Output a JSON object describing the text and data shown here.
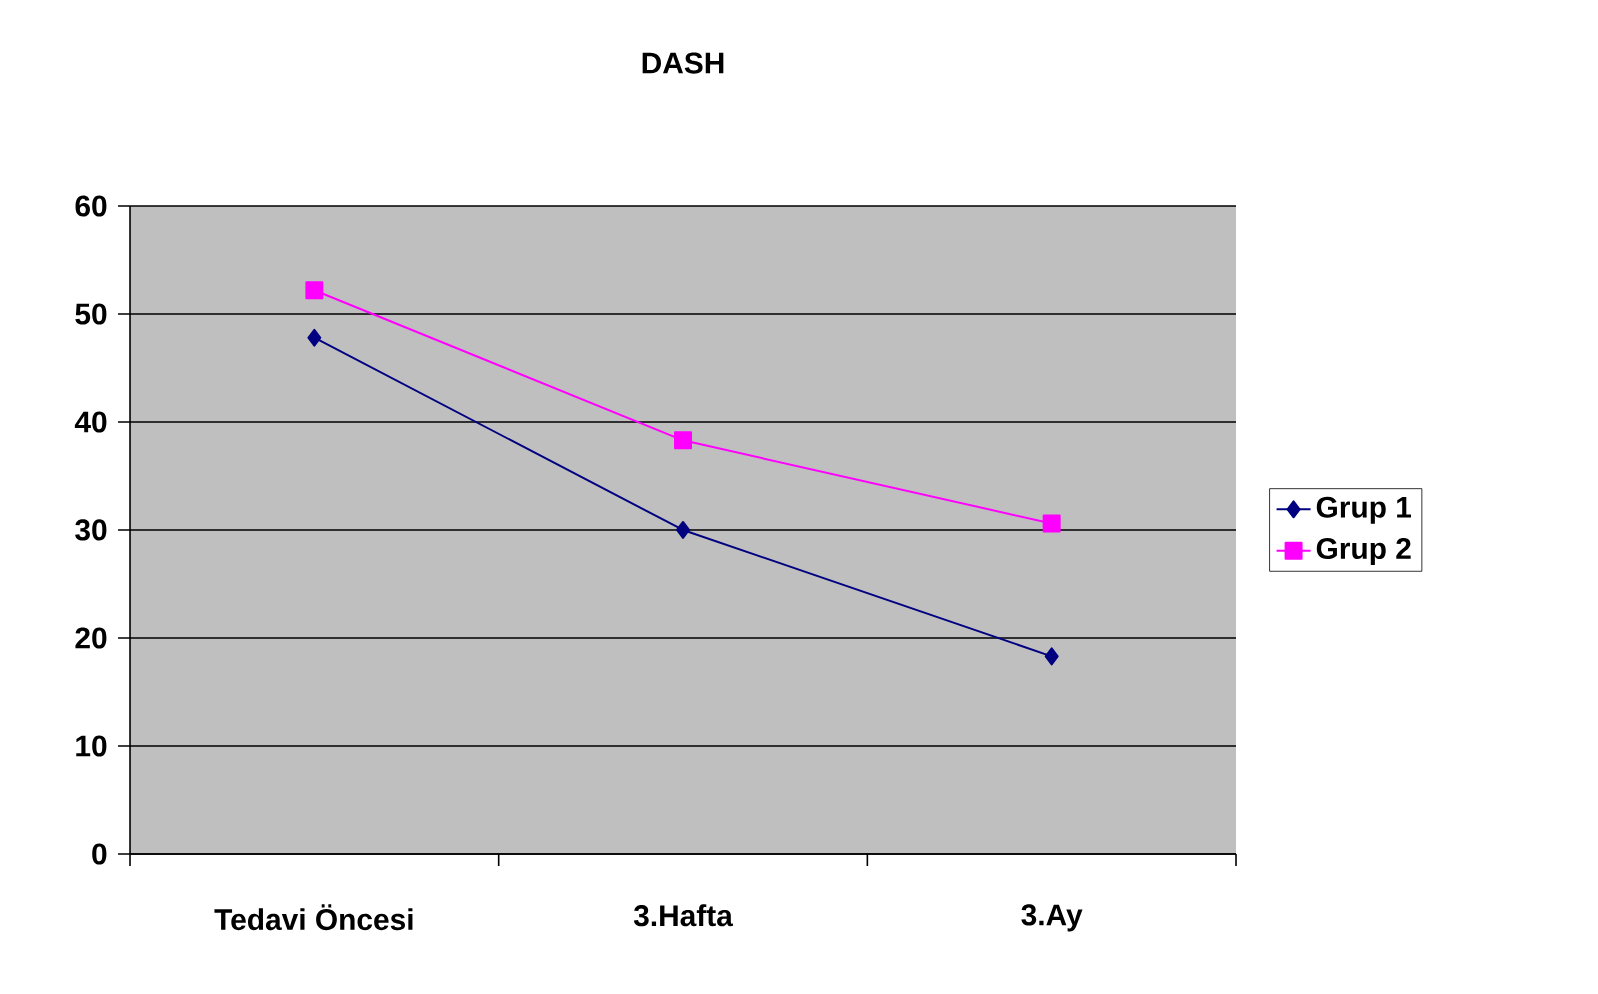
{
  "chart_data": {
    "type": "line",
    "title": "DASH",
    "categories": [
      "Tedavi Öncesi",
      "3.Hafta",
      "3.Ay"
    ],
    "series": [
      {
        "name": "Grup 1",
        "color": "#000080",
        "marker": "diamond",
        "values": [
          47.8,
          30,
          18.3
        ]
      },
      {
        "name": "Grup 2",
        "color": "#ff00ff",
        "marker": "square",
        "values": [
          52.2,
          38.3,
          30.6
        ]
      }
    ],
    "ylim": [
      0,
      60
    ],
    "yticks": [
      0,
      10,
      20,
      30,
      40,
      50,
      60
    ],
    "grid": "y",
    "legend": "right"
  }
}
